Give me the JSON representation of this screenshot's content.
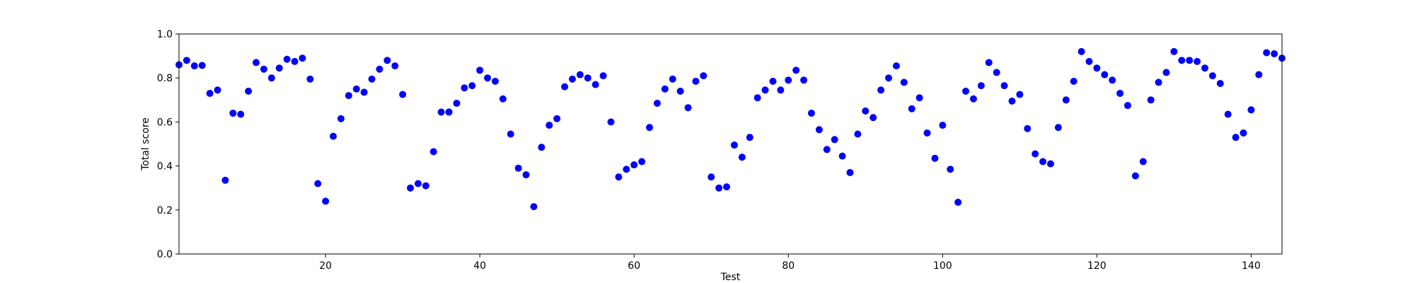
{
  "chart_data": {
    "type": "scatter",
    "title": "",
    "xlabel": "Test",
    "ylabel": "Total score",
    "xlim": [
      1,
      144
    ],
    "ylim": [
      0.0,
      1.0
    ],
    "xticks": [
      20,
      40,
      60,
      80,
      100,
      120,
      140
    ],
    "xtick_labels": [
      "20",
      "40",
      "60",
      "80",
      "100",
      "120",
      "140"
    ],
    "yticks": [
      0.0,
      0.2,
      0.4,
      0.6,
      0.8,
      1.0
    ],
    "ytick_labels": [
      "0.0",
      "0.2",
      "0.4",
      "0.6",
      "0.8",
      "1.0"
    ],
    "grid": false,
    "legend": false,
    "marker_color": "#0000ff",
    "series": [
      {
        "x": [
          1,
          2,
          3,
          4,
          5,
          6,
          7,
          8,
          9,
          10,
          11,
          12,
          13,
          14,
          15,
          16,
          17,
          18,
          19,
          20,
          21,
          22,
          23,
          24,
          25,
          26,
          27,
          28,
          29,
          30,
          31,
          32,
          33,
          34,
          35,
          36,
          37,
          38,
          39,
          40,
          41,
          42,
          43,
          44,
          45,
          46,
          47,
          48,
          49,
          50,
          51,
          52,
          53,
          54,
          55,
          56,
          57,
          58,
          59,
          60,
          61,
          62,
          63,
          64,
          65,
          66,
          67,
          68,
          69,
          70,
          71,
          72,
          73,
          74,
          75,
          76,
          77,
          78,
          79,
          80,
          81,
          82,
          83,
          84,
          85,
          86,
          87,
          88,
          89,
          90,
          91,
          92,
          93,
          94,
          95,
          96,
          97,
          98,
          99,
          100,
          101,
          102,
          103,
          104,
          105,
          106,
          107,
          108,
          109,
          110,
          111,
          112,
          113,
          114,
          115,
          116,
          117,
          118,
          119,
          120,
          121,
          122,
          123,
          124,
          125,
          126,
          127,
          128,
          129,
          130,
          131,
          132,
          133,
          134,
          135,
          136,
          137,
          138,
          139,
          140,
          141,
          142,
          143,
          144
        ],
        "y": [
          0.86,
          0.88,
          0.855,
          0.857,
          0.73,
          0.745,
          0.335,
          0.64,
          0.635,
          0.74,
          0.87,
          0.84,
          0.8,
          0.845,
          0.885,
          0.875,
          0.89,
          0.795,
          0.32,
          0.24,
          0.535,
          0.615,
          0.72,
          0.75,
          0.735,
          0.795,
          0.84,
          0.88,
          0.855,
          0.725,
          0.3,
          0.32,
          0.31,
          0.465,
          0.645,
          0.645,
          0.685,
          0.755,
          0.765,
          0.835,
          0.8,
          0.785,
          0.705,
          0.545,
          0.39,
          0.36,
          0.215,
          0.485,
          0.585,
          0.615,
          0.76,
          0.795,
          0.815,
          0.8,
          0.77,
          0.81,
          0.6,
          0.35,
          0.385,
          0.405,
          0.42,
          0.575,
          0.685,
          0.75,
          0.795,
          0.74,
          0.665,
          0.785,
          0.81,
          0.35,
          0.3,
          0.305,
          0.495,
          0.44,
          0.53,
          0.71,
          0.745,
          0.785,
          0.745,
          0.79,
          0.835,
          0.79,
          0.64,
          0.565,
          0.475,
          0.52,
          0.445,
          0.37,
          0.545,
          0.65,
          0.62,
          0.745,
          0.8,
          0.855,
          0.78,
          0.66,
          0.71,
          0.55,
          0.435,
          0.585,
          0.385,
          0.235,
          0.74,
          0.705,
          0.765,
          0.87,
          0.825,
          0.765,
          0.695,
          0.725,
          0.57,
          0.455,
          0.42,
          0.41,
          0.575,
          0.7,
          0.785,
          0.92,
          0.875,
          0.845,
          0.815,
          0.79,
          0.73,
          0.675,
          0.355,
          0.42,
          0.7,
          0.78,
          0.825,
          0.92,
          0.88,
          0.88,
          0.875,
          0.845,
          0.81,
          0.775,
          0.635,
          0.53,
          0.55,
          0.655,
          0.815,
          0.915,
          0.91,
          0.89
        ]
      }
    ]
  }
}
